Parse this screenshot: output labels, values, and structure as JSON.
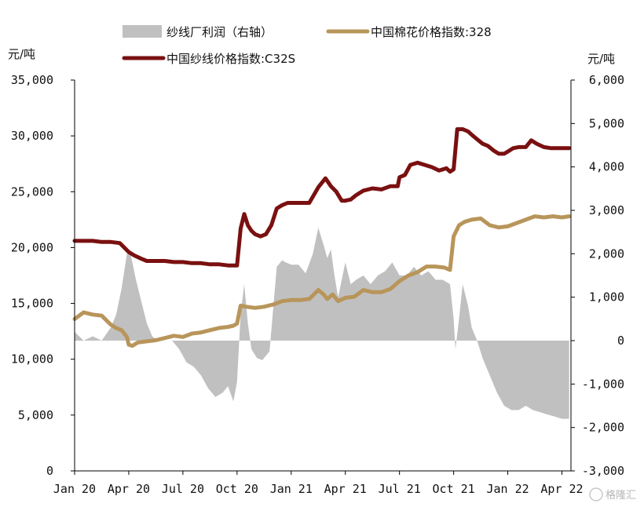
{
  "chart_data": {
    "type": "line",
    "left_axis": {
      "unit": "元/吨",
      "ylim": [
        0,
        35000
      ],
      "ticks": [
        0,
        5000,
        10000,
        15000,
        20000,
        25000,
        30000,
        35000
      ],
      "tick_labels": [
        "0",
        "5,000",
        "10,000",
        "15,000",
        "20,000",
        "25,000",
        "30,000",
        "35,000"
      ]
    },
    "right_axis": {
      "unit": "元/吨",
      "ylim": [
        -3000,
        6000
      ],
      "ticks": [
        -3000,
        -2000,
        -1000,
        0,
        1000,
        2000,
        3000,
        4000,
        5000,
        6000
      ],
      "tick_labels": [
        "-3,000",
        "-2,000",
        "-1,000",
        "0",
        "1,000",
        "2,000",
        "3,000",
        "4,000",
        "5,000",
        "6,000"
      ]
    },
    "x_axis": {
      "xlim": [
        0,
        27.5
      ],
      "ticks": [
        0,
        3,
        6,
        9,
        12,
        15,
        18,
        21,
        24,
        27
      ],
      "tick_labels": [
        "Jan 20",
        "Apr 20",
        "Jul 20",
        "Oct 20",
        "Jan 21",
        "Apr 21",
        "Jul 21",
        "Oct 21",
        "Jan 22",
        "Apr 22"
      ]
    },
    "series": [
      {
        "name": "纱线厂利润（右轴）",
        "kind": "area",
        "axis": "right",
        "color": "#c0c0c0",
        "x": [
          0,
          0.5,
          1,
          1.5,
          2,
          2.3,
          2.6,
          2.9,
          3.1,
          3.4,
          3.7,
          4.0,
          4.3,
          4.6,
          5.0,
          5.4,
          5.8,
          6.2,
          6.6,
          7.0,
          7.4,
          7.8,
          8.2,
          8.5,
          8.8,
          9.0,
          9.2,
          9.4,
          9.6,
          9.8,
          10.1,
          10.4,
          10.8,
          11.2,
          11.5,
          11.7,
          12.0,
          12.4,
          12.8,
          13.2,
          13.5,
          13.8,
          14.0,
          14.2,
          14.4,
          14.6,
          15.0,
          15.3,
          15.6,
          16.0,
          16.4,
          16.8,
          17.2,
          17.6,
          18.0,
          18.4,
          18.8,
          19.2,
          19.6,
          20.0,
          20.4,
          20.8,
          21.0,
          21.1,
          21.3,
          21.5,
          21.8,
          22.0,
          22.3,
          22.6,
          23.0,
          23.4,
          23.8,
          24.2,
          24.6,
          25.0,
          25.4,
          25.8,
          26.2,
          26.6,
          27.0,
          27.4
        ],
        "values": [
          200,
          0,
          100,
          0,
          300,
          600,
          1200,
          2000,
          2000,
          1400,
          900,
          400,
          100,
          0,
          0,
          0,
          -200,
          -500,
          -600,
          -800,
          -1100,
          -1300,
          -1200,
          -1050,
          -1400,
          -950,
          600,
          1300,
          400,
          -200,
          -400,
          -450,
          -250,
          1700,
          1850,
          1800,
          1750,
          1750,
          1550,
          2000,
          2600,
          2200,
          1900,
          2100,
          1500,
          1000,
          1800,
          1300,
          1400,
          1500,
          1300,
          1500,
          1600,
          1800,
          1500,
          1500,
          1700,
          1500,
          1600,
          1400,
          1400,
          1300,
          500,
          -200,
          500,
          1300,
          800,
          300,
          0,
          -400,
          -800,
          -1200,
          -1500,
          -1600,
          -1600,
          -1500,
          -1600,
          -1650,
          -1700,
          -1750,
          -1800,
          -1800
        ]
      },
      {
        "name": "中国棉花价格指数:328",
        "kind": "line",
        "axis": "left",
        "color": "#b8955a",
        "x": [
          0,
          0.5,
          1,
          1.5,
          2,
          2.3,
          2.6,
          2.9,
          3.0,
          3.2,
          3.5,
          4.0,
          4.5,
          5.0,
          5.5,
          6.0,
          6.5,
          7.0,
          7.5,
          8.0,
          8.5,
          8.8,
          9.0,
          9.2,
          9.5,
          10.0,
          10.5,
          11.0,
          11.5,
          12.0,
          12.5,
          13.0,
          13.5,
          13.8,
          14.0,
          14.3,
          14.6,
          15.0,
          15.5,
          16.0,
          16.5,
          17.0,
          17.5,
          18.0,
          18.5,
          19.0,
          19.5,
          20.0,
          20.5,
          20.8,
          21.0,
          21.3,
          21.6,
          22.0,
          22.5,
          23.0,
          23.5,
          24.0,
          24.5,
          25.0,
          25.5,
          26.0,
          26.5,
          27.0,
          27.4
        ],
        "values": [
          13600,
          14200,
          14000,
          13900,
          13100,
          12800,
          12600,
          12000,
          11300,
          11200,
          11500,
          11600,
          11700,
          11900,
          12100,
          12000,
          12300,
          12400,
          12600,
          12800,
          12900,
          13000,
          13200,
          14800,
          14700,
          14600,
          14700,
          14900,
          15200,
          15300,
          15300,
          15400,
          16200,
          15800,
          15400,
          15800,
          15200,
          15500,
          15600,
          16200,
          16000,
          16000,
          16300,
          17000,
          17500,
          17800,
          18300,
          18300,
          18200,
          18000,
          21000,
          22000,
          22300,
          22500,
          22600,
          22000,
          21800,
          21900,
          22200,
          22500,
          22800,
          22700,
          22800,
          22700,
          22800
        ]
      },
      {
        "name": "中国纱线价格指数:C32S",
        "kind": "line",
        "axis": "left",
        "color": "#7a1010",
        "x": [
          0,
          0.5,
          1,
          1.5,
          2,
          2.5,
          3.0,
          3.3,
          3.7,
          4.0,
          4.5,
          5.0,
          5.5,
          6.0,
          6.5,
          7.0,
          7.5,
          8.0,
          8.5,
          8.8,
          9.0,
          9.2,
          9.4,
          9.6,
          9.8,
          10.0,
          10.3,
          10.6,
          10.9,
          11.2,
          11.5,
          11.8,
          12.0,
          12.3,
          12.6,
          13.0,
          13.5,
          13.9,
          14.2,
          14.5,
          14.8,
          15.0,
          15.3,
          15.6,
          16.0,
          16.5,
          17.0,
          17.5,
          17.9,
          18.0,
          18.3,
          18.6,
          19.0,
          19.4,
          19.8,
          20.2,
          20.6,
          20.8,
          21.0,
          21.2,
          21.5,
          21.8,
          22.0,
          22.3,
          22.6,
          22.9,
          23.2,
          23.5,
          23.8,
          24.0,
          24.3,
          24.6,
          25.0,
          25.3,
          25.6,
          26.0,
          26.4,
          26.8,
          27.0,
          27.4
        ],
        "values": [
          20600,
          20600,
          20600,
          20500,
          20500,
          20400,
          19600,
          19300,
          19000,
          18800,
          18800,
          18800,
          18700,
          18700,
          18600,
          18600,
          18500,
          18500,
          18400,
          18400,
          18400,
          21700,
          23000,
          22000,
          21500,
          21200,
          21000,
          21200,
          22000,
          23500,
          23800,
          24000,
          24000,
          24000,
          24000,
          24000,
          25400,
          26200,
          25500,
          25000,
          24200,
          24200,
          24300,
          24700,
          25100,
          25300,
          25200,
          25500,
          25500,
          26300,
          26500,
          27400,
          27600,
          27400,
          27200,
          26900,
          27100,
          26800,
          27000,
          30600,
          30600,
          30400,
          30100,
          29700,
          29300,
          29100,
          28700,
          28400,
          28400,
          28600,
          28900,
          29000,
          29000,
          29600,
          29300,
          29000,
          28900,
          28900,
          28900,
          28900
        ]
      }
    ],
    "watermark": "格隆汇"
  }
}
